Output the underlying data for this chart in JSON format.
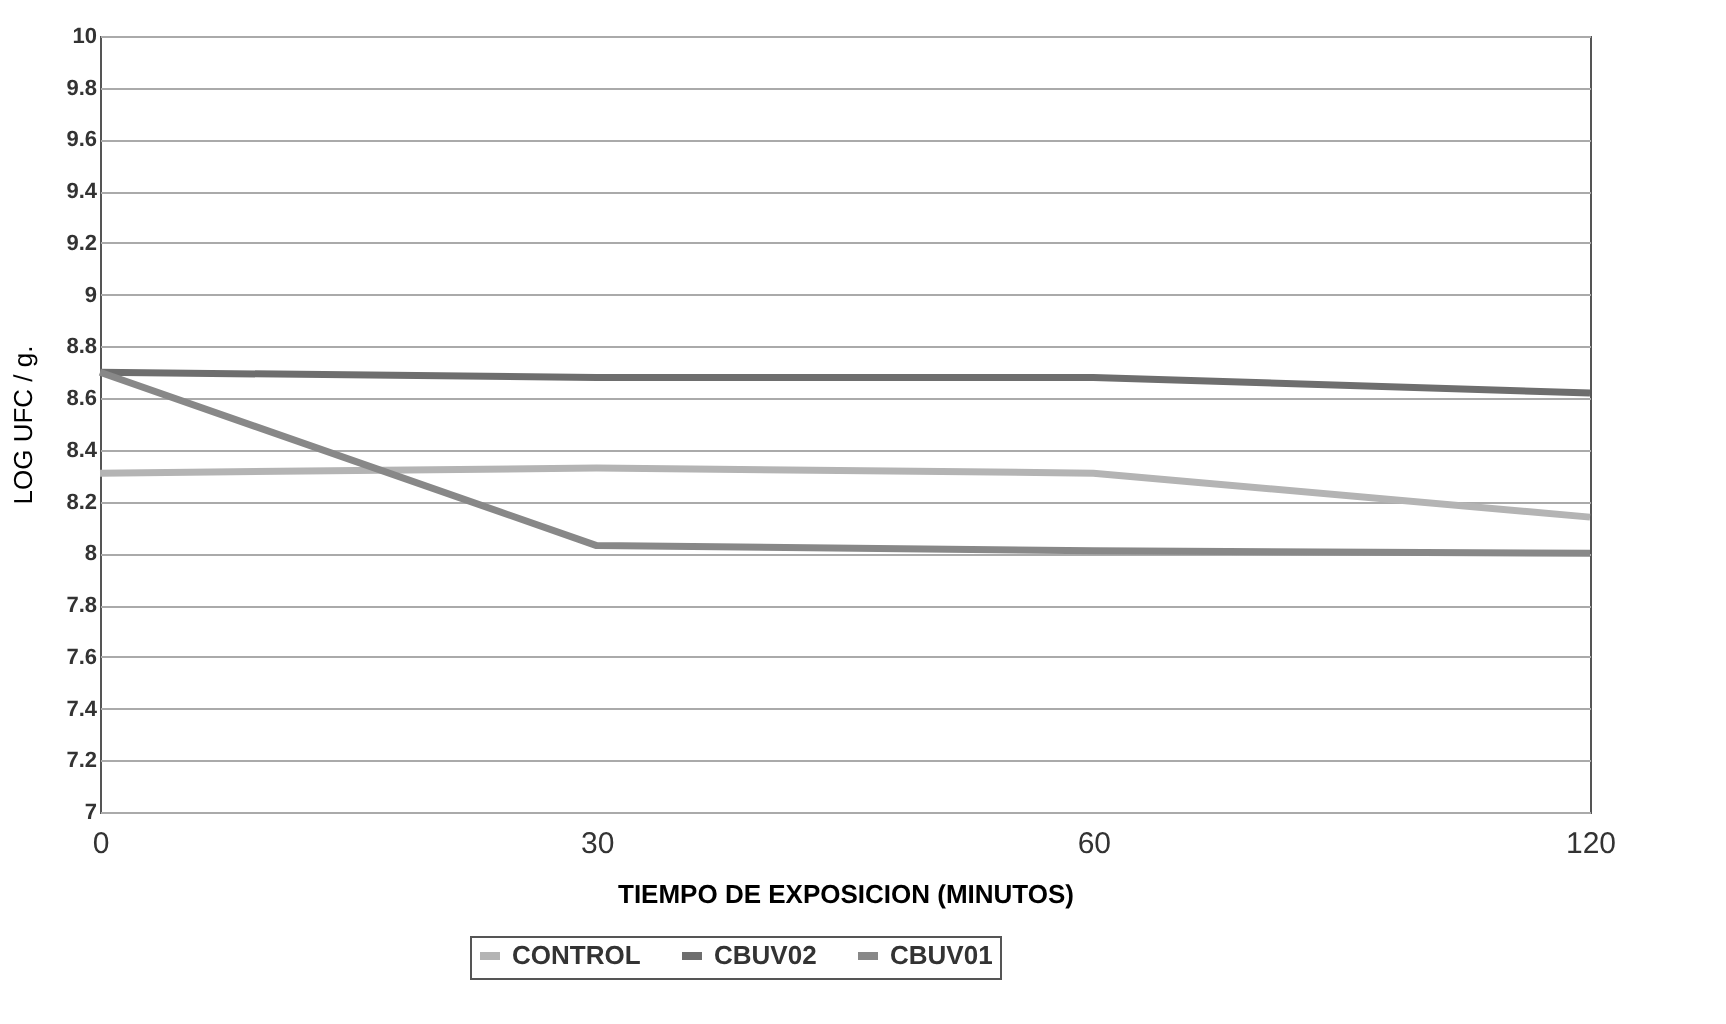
{
  "chart_data": {
    "type": "line",
    "xlabel": "TIEMPO DE EXPOSICION (MINUTOS)",
    "ylabel": "LOG UFC / g.",
    "categories": [
      "0",
      "30",
      "60",
      "120"
    ],
    "series": [
      {
        "name": "CONTROL",
        "color": "#b4b4b4",
        "values": [
          8.31,
          8.33,
          8.31,
          8.14
        ]
      },
      {
        "name": "CBUV02",
        "color": "#6e6e6e",
        "values": [
          8.7,
          8.68,
          8.68,
          8.62
        ]
      },
      {
        "name": "CBUV01",
        "color": "#888888",
        "values": [
          8.7,
          8.03,
          8.01,
          8.0
        ]
      }
    ],
    "ylim": [
      7,
      10
    ],
    "yticks": [
      7,
      7.2,
      7.4,
      7.6,
      7.8,
      8,
      8.2,
      8.4,
      8.6,
      8.8,
      9,
      9.2,
      9.4,
      9.6,
      9.8,
      10
    ],
    "grid": "y",
    "legend": "bottom",
    "marker": "none",
    "line_style": "solid"
  }
}
